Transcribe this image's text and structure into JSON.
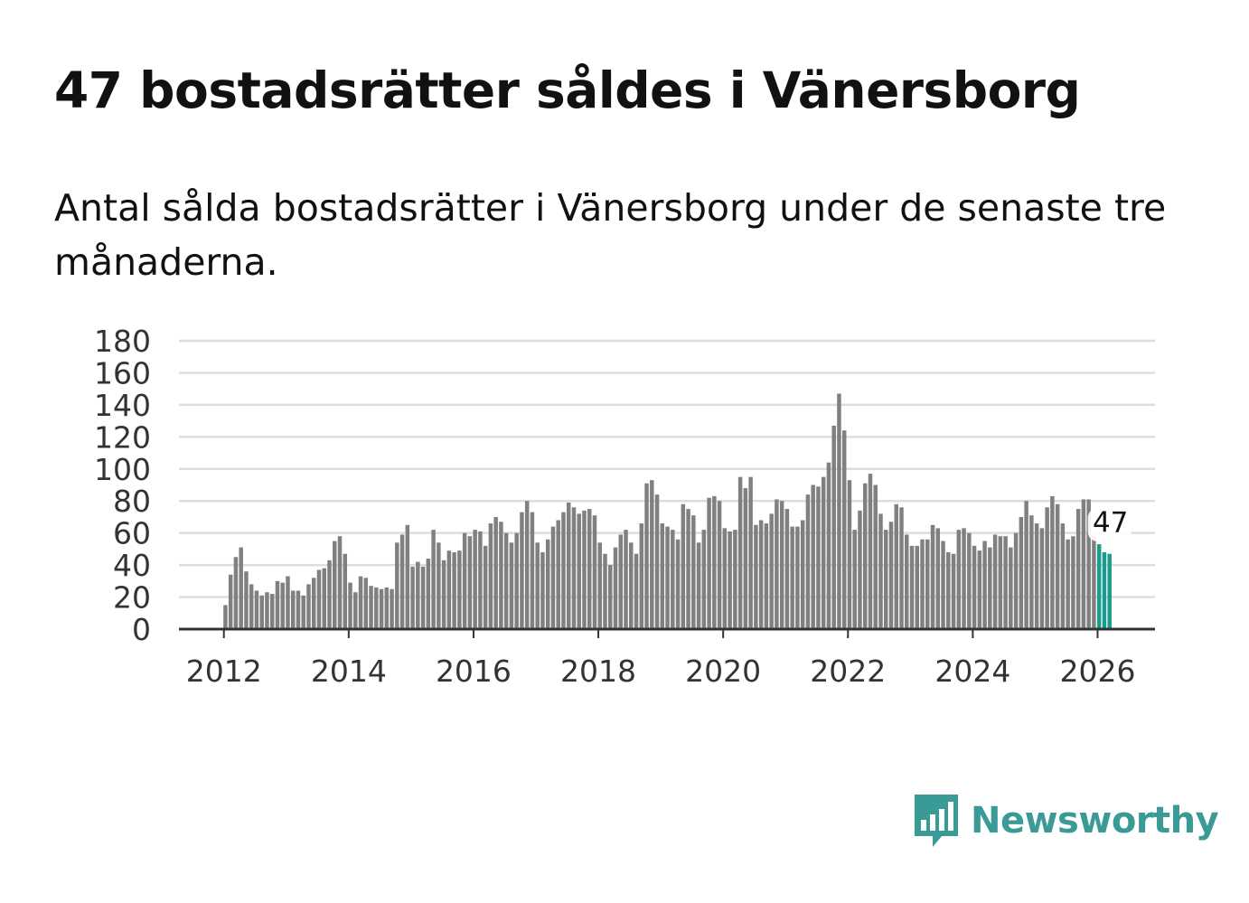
{
  "title": "47 bostadsrätter såldes i Vänersborg",
  "subtitle": "Antal sålda bostadsrätter i Vänersborg under de senaste tre månaderna.",
  "brand": {
    "name": "Newsworthy",
    "color": "#3a9b96",
    "icon": "bar-chart-speech-bubble-icon"
  },
  "colors": {
    "bar": "#808080",
    "highlight": "#1a9b8e",
    "grid": "#dddddd",
    "axis": "#333333"
  },
  "chart_data": {
    "type": "bar",
    "title": "47 bostadsrätter såldes i Vänersborg",
    "xlabel": "",
    "ylabel": "",
    "ylim": [
      0,
      180
    ],
    "yticks": [
      "0",
      "20",
      "40",
      "60",
      "80",
      "100",
      "120",
      "140",
      "160",
      "180"
    ],
    "xticks": [
      {
        "label": "2012",
        "value": 2012.0
      },
      {
        "label": "2014",
        "value": 2014.0
      },
      {
        "label": "2016",
        "value": 2016.0
      },
      {
        "label": "2018",
        "value": 2018.0
      },
      {
        "label": "2020",
        "value": 2020.0
      },
      {
        "label": "2022",
        "value": 2022.0
      },
      {
        "label": "2024",
        "value": 2024.0
      },
      {
        "label": "2026",
        "value": 2026.0
      }
    ],
    "x_range": [
      2011.28,
      2026.92
    ],
    "start": {
      "year": 2012,
      "month": 1
    },
    "interval_months": 1,
    "series": [
      {
        "name": "Sålda bostadsrätter",
        "values": [
          15,
          34,
          45,
          51,
          36,
          28,
          24,
          21,
          23,
          22,
          30,
          29,
          33,
          24,
          24,
          21,
          28,
          32,
          37,
          38,
          43,
          55,
          58,
          47,
          29,
          23,
          33,
          32,
          27,
          26,
          25,
          26,
          25,
          54,
          59,
          65,
          39,
          42,
          39,
          44,
          62,
          54,
          43,
          49,
          48,
          49,
          60,
          58,
          62,
          61,
          52,
          66,
          70,
          67,
          60,
          54,
          60,
          73,
          80,
          73,
          54,
          48,
          56,
          64,
          68,
          73,
          79,
          76,
          72,
          74,
          75,
          71,
          54,
          47,
          40,
          51,
          59,
          62,
          54,
          47,
          66,
          91,
          93,
          84,
          66,
          64,
          62,
          56,
          78,
          75,
          71,
          54,
          62,
          82,
          83,
          80,
          63,
          61,
          62,
          95,
          88,
          95,
          65,
          68,
          66,
          72,
          81,
          80,
          75,
          64,
          64,
          68,
          84,
          90,
          89,
          95,
          104,
          127,
          147,
          124,
          93,
          62,
          74,
          91,
          97,
          90,
          72,
          62,
          67,
          78,
          76,
          59,
          52,
          52,
          56,
          56,
          65,
          63,
          55,
          48,
          47,
          62,
          63,
          60,
          52,
          49,
          55,
          51,
          59,
          58,
          58,
          51,
          60,
          70,
          80,
          71,
          66,
          63,
          76,
          83,
          78,
          66,
          56,
          58,
          75,
          81,
          81,
          58,
          53,
          48,
          47
        ]
      }
    ],
    "highlight": {
      "count": 3,
      "label": "47"
    }
  }
}
